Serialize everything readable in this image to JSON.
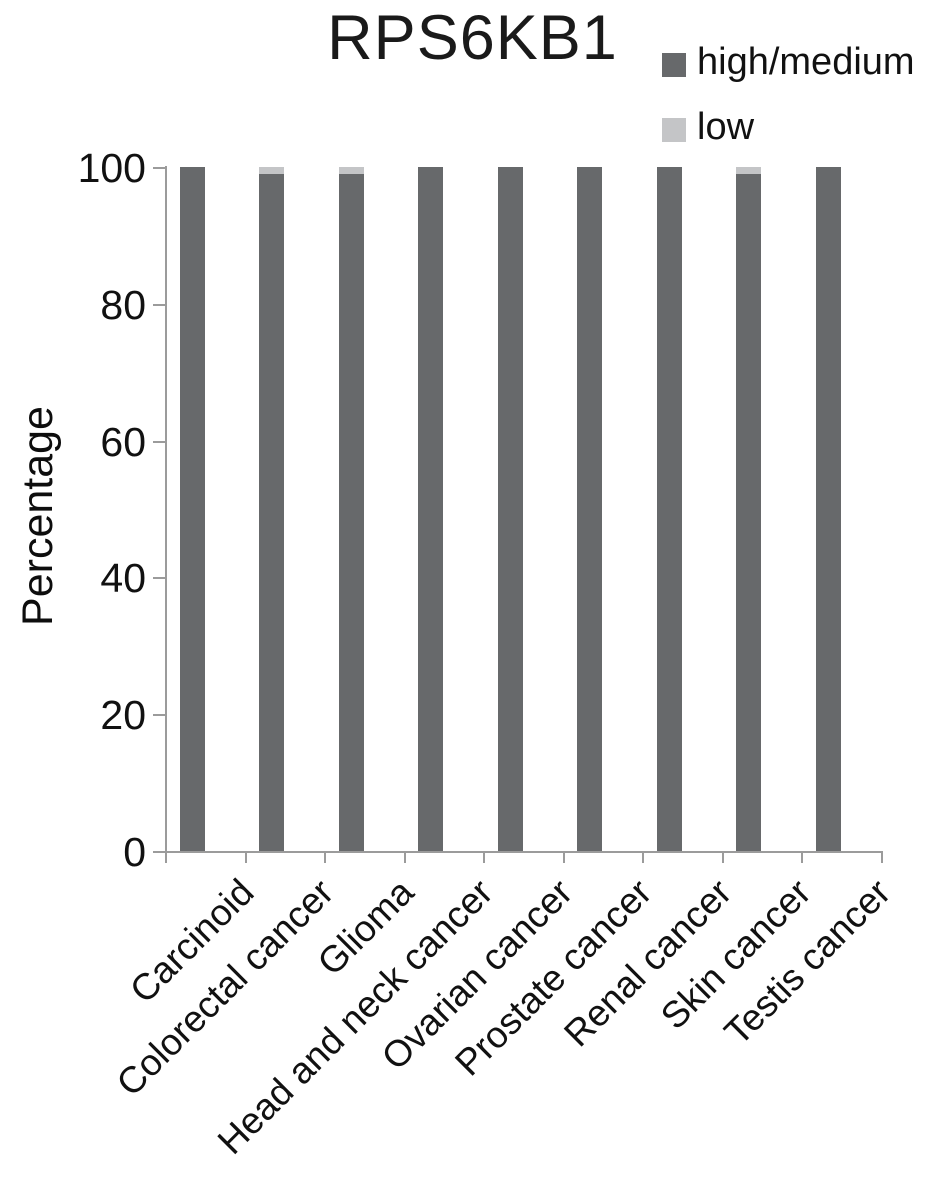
{
  "title": "RPS6KB1",
  "colors": {
    "high_medium": "#67696b",
    "low": "#c4c5c7",
    "axis": "#9b9b9b",
    "text": "#111111"
  },
  "legend": {
    "items": [
      {
        "label": "high/medium",
        "color": "#67696b"
      },
      {
        "label": "low",
        "color": "#c4c5c7"
      }
    ]
  },
  "y_axis": {
    "label": "Percentage"
  },
  "chart_data": {
    "type": "bar",
    "subtype": "stacked-percentage",
    "title": "RPS6KB1",
    "categories": [
      "Carcinoid",
      "Colorectal cancer",
      "Glioma",
      "Head and neck cancer",
      "Ovarian cancer",
      "Prostate cancer",
      "Renal cancer",
      "Skin cancer",
      "Testis cancer"
    ],
    "series": [
      {
        "name": "high/medium",
        "color": "#67696b",
        "values": [
          100,
          99,
          99,
          100,
          100,
          100,
          100,
          99,
          100
        ]
      },
      {
        "name": "low",
        "color": "#c4c5c7",
        "values": [
          0,
          1,
          1,
          0,
          0,
          0,
          0,
          1,
          0
        ]
      }
    ],
    "xlabel": "",
    "ylabel": "Percentage",
    "ylim": [
      0,
      100
    ],
    "yticks": [
      0,
      20,
      40,
      60,
      80,
      100
    ],
    "grid": false,
    "legend_position": "top-right"
  }
}
